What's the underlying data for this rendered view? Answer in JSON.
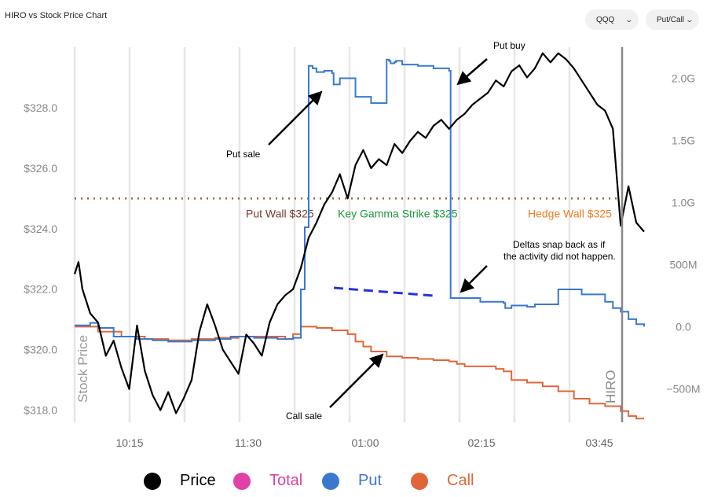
{
  "header": {
    "title": "HIRO vs Stock Price Chart",
    "symbol_select": "QQQ",
    "mode_select": "Put/Call"
  },
  "colors": {
    "price": "#000000",
    "total": "#e040a8",
    "put": "#3a78d0",
    "call": "#e0663a",
    "put_wall": "#7a3b2e",
    "key_gamma": "#1a9a3a",
    "hedge_wall": "#f07a20",
    "dotted_line": "#8b6a3a",
    "annotation_dashed": "#2233dd",
    "grid": "#e6e6e6",
    "hiro_line": "#888888"
  },
  "chart_data": {
    "type": "line",
    "title": "HIRO vs Stock Price Chart",
    "x_tick_labels": [
      "10:15",
      "11:30",
      "01:00",
      "02:15",
      "03:45"
    ],
    "left_axis": {
      "label": "Stock Price",
      "ticks": [
        "$318.0",
        "$320.0",
        "$322.0",
        "$324.0",
        "$326.0",
        "$328.0"
      ],
      "tick_values": [
        318,
        320,
        322,
        324,
        326,
        328
      ],
      "range": [
        317.6,
        330.0
      ]
    },
    "right_axis": {
      "label": "HIRO",
      "ticks": [
        "−500M",
        "0.0",
        "500M",
        "1.0G",
        "1.5G",
        "2.0G"
      ],
      "tick_values": [
        -500,
        0,
        500,
        1000,
        1500,
        2000
      ],
      "range": [
        -770,
        2250
      ],
      "units": "M"
    },
    "levels": [
      {
        "name": "Put Wall $325",
        "value": 325
      },
      {
        "name": "Key Gamma Strike $325",
        "value": 325
      },
      {
        "name": "Hedge Wall $325",
        "value": 325
      }
    ],
    "series": [
      {
        "name": "Price",
        "axis": "left",
        "x": [
          0,
          0.5,
          1,
          2,
          3,
          4,
          5,
          6,
          7,
          8,
          9,
          10,
          11,
          12,
          13,
          14,
          15,
          16,
          17,
          18,
          19,
          20,
          21,
          22,
          23,
          24,
          25,
          26,
          27,
          28,
          29,
          30,
          31,
          32,
          33,
          34,
          35,
          36,
          37,
          38,
          39,
          40,
          41,
          42,
          43,
          44,
          45,
          46,
          47,
          48,
          49,
          50,
          51,
          52,
          53,
          54,
          55,
          56,
          57,
          58,
          59,
          60,
          61,
          62,
          63,
          64,
          65,
          66,
          67,
          68,
          69,
          70,
          71,
          72,
          73
        ],
        "y": [
          322.5,
          322.9,
          322.0,
          321.2,
          320.9,
          319.8,
          320.3,
          319.4,
          318.7,
          320.8,
          319.3,
          318.5,
          318.0,
          318.6,
          317.9,
          318.4,
          319.0,
          320.6,
          321.5,
          320.8,
          320.0,
          319.6,
          319.2,
          320.5,
          320.2,
          319.8,
          320.9,
          321.5,
          321.8,
          322.0,
          322.7,
          323.7,
          324.2,
          324.8,
          325.2,
          325.8,
          325.0,
          326.1,
          326.6,
          326.0,
          326.3,
          326.1,
          326.8,
          326.5,
          326.9,
          327.2,
          327.0,
          327.4,
          327.6,
          327.3,
          327.6,
          327.8,
          328.1,
          328.3,
          328.5,
          328.9,
          328.7,
          329.2,
          329.4,
          329.0,
          329.3,
          329.8,
          329.5,
          329.8,
          329.6,
          329.3,
          328.9,
          328.5,
          328.1,
          327.9,
          327.3,
          324.1,
          325.4,
          324.2,
          323.9
        ]
      },
      {
        "name": "Put",
        "axis": "right",
        "x": [
          0,
          2,
          3,
          5,
          8,
          10,
          12,
          15,
          18,
          20,
          23,
          26,
          28,
          29,
          29.5,
          30,
          30.5,
          31,
          32,
          33,
          33.2,
          34,
          36,
          38,
          40,
          40.3,
          40.5,
          41,
          41.2,
          42,
          44,
          46,
          48,
          48.2,
          49,
          52,
          55,
          55.2,
          56,
          58,
          59,
          62,
          65,
          68,
          69,
          70,
          71,
          72,
          73
        ],
        "y": [
          10,
          30,
          -10,
          -80,
          -100,
          -110,
          -120,
          -110,
          -100,
          -80,
          -90,
          -100,
          -90,
          300,
          800,
          2100,
          2080,
          2050,
          2060,
          2040,
          1950,
          2000,
          1850,
          1800,
          2150,
          2140,
          2120,
          2130,
          2140,
          2110,
          2100,
          2080,
          2060,
          230,
          230,
          200,
          190,
          150,
          170,
          160,
          180,
          300,
          260,
          200,
          150,
          120,
          60,
          20,
          0
        ]
      },
      {
        "name": "Call",
        "axis": "right",
        "x": [
          0,
          3,
          6,
          9,
          12,
          15,
          18,
          21,
          24,
          27,
          28,
          29,
          31,
          33,
          35,
          36,
          37,
          38,
          40,
          42,
          44,
          46,
          48,
          49,
          50,
          52,
          54,
          55,
          56,
          58,
          60,
          62,
          64,
          66,
          68,
          70,
          71,
          72,
          73
        ],
        "y": [
          0,
          -40,
          -80,
          -100,
          -110,
          -100,
          -90,
          -80,
          -80,
          -100,
          -60,
          0,
          -10,
          -30,
          -60,
          -120,
          -160,
          -200,
          -240,
          -250,
          -260,
          -270,
          -280,
          -300,
          -320,
          -320,
          -340,
          -360,
          -430,
          -450,
          -480,
          -520,
          -580,
          -620,
          -640,
          -680,
          -720,
          -740,
          -740
        ]
      }
    ],
    "legend": [
      {
        "name": "Price",
        "color": "#000000"
      },
      {
        "name": "Total",
        "color": "#e040a8"
      },
      {
        "name": "Put",
        "color": "#3a78d0"
      },
      {
        "name": "Call",
        "color": "#e0663a"
      }
    ],
    "annotations": [
      {
        "text": "Put buy"
      },
      {
        "text": "Put sale"
      },
      {
        "text": "Deltas snap back as if"
      },
      {
        "text": "the activity did not happen."
      },
      {
        "text": "Call sale"
      }
    ]
  }
}
